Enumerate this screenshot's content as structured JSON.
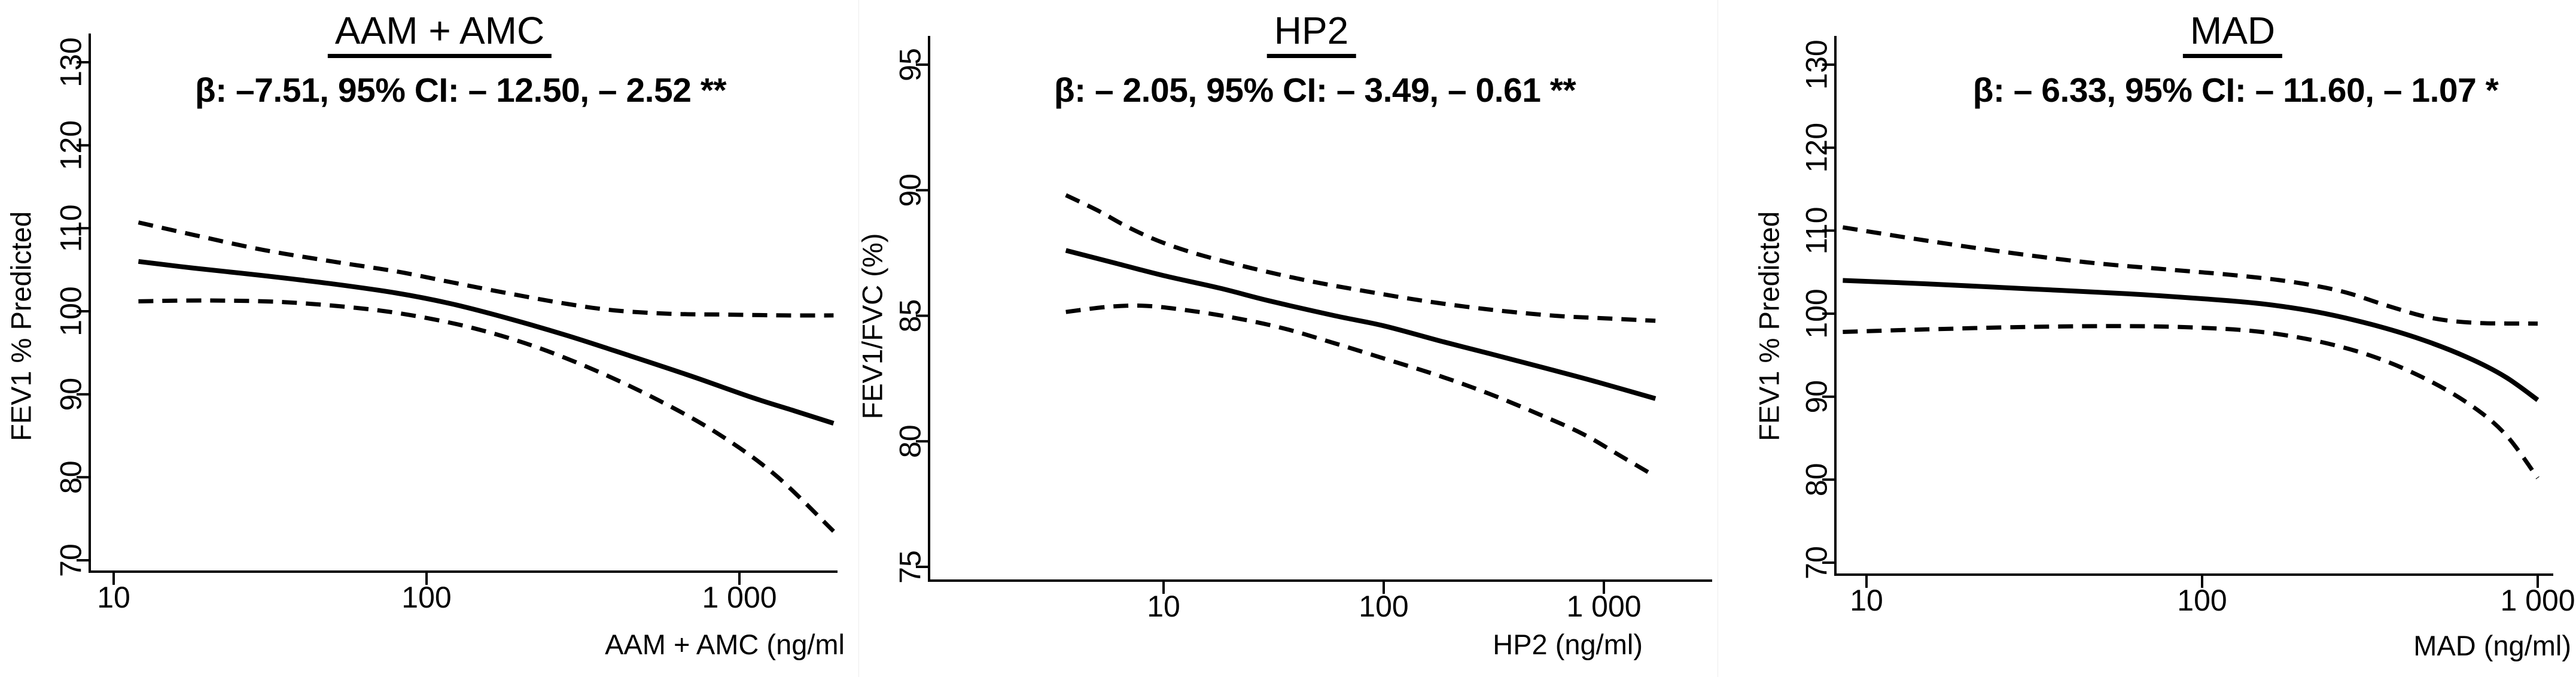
{
  "figure": {
    "background": "#ffffff",
    "ink_color": "#000000",
    "panel_divider_color": "#ececec"
  },
  "chart_data": [
    {
      "id": "aam-amc",
      "type": "line",
      "title": "AAM + AMC",
      "subtitle": "β: –7.51, 95% CI: – 12.50, – 2.52 **",
      "xlabel": "AAM + AMC (ng/ml",
      "ylabel": "FEV1 % Predicted",
      "x_scale": "log10",
      "xlim": [
        10,
        2300
      ],
      "ylim": [
        70,
        130
      ],
      "y_ticks": [
        70,
        80,
        90,
        100,
        110,
        120,
        130
      ],
      "x_ticks": [
        {
          "value": 10,
          "label": "10"
        },
        {
          "value": 100,
          "label": "100"
        },
        {
          "value": 1000,
          "label": "1 000"
        }
      ],
      "grid": false,
      "legend": null,
      "series": [
        {
          "name": "estimate",
          "style": "solid",
          "points": [
            [
              12,
              106
            ],
            [
              18,
              105.2
            ],
            [
              30,
              104.3
            ],
            [
              50,
              103.3
            ],
            [
              80,
              102.2
            ],
            [
              120,
              100.9
            ],
            [
              180,
              99.2
            ],
            [
              280,
              97.1
            ],
            [
              450,
              94.6
            ],
            [
              700,
              92.2
            ],
            [
              1100,
              89.6
            ],
            [
              1500,
              88.0
            ],
            [
              2000,
              86.5
            ]
          ]
        },
        {
          "name": "ci-upper",
          "style": "dashed",
          "points": [
            [
              12,
              110.7
            ],
            [
              18,
              109.2
            ],
            [
              30,
              107.4
            ],
            [
              50,
              106.0
            ],
            [
              80,
              104.8
            ],
            [
              120,
              103.5
            ],
            [
              180,
              102.2
            ],
            [
              280,
              100.9
            ],
            [
              400,
              100.1
            ],
            [
              600,
              99.7
            ],
            [
              900,
              99.6
            ],
            [
              1400,
              99.5
            ],
            [
              2000,
              99.5
            ]
          ]
        },
        {
          "name": "ci-lower",
          "style": "dashed",
          "points": [
            [
              12,
              101.2
            ],
            [
              20,
              101.3
            ],
            [
              35,
              101.1
            ],
            [
              60,
              100.4
            ],
            [
              90,
              99.5
            ],
            [
              140,
              98.0
            ],
            [
              220,
              95.8
            ],
            [
              350,
              92.8
            ],
            [
              550,
              89.3
            ],
            [
              850,
              85.3
            ],
            [
              1300,
              80.3
            ],
            [
              2000,
              73.5
            ]
          ]
        }
      ]
    },
    {
      "id": "hp2",
      "type": "line",
      "title": "HP2",
      "subtitle": "β: – 2.05, 95% CI: – 3.49, – 0.61 **",
      "xlabel": "HP2 (ng/ml)",
      "ylabel": "FEV1/FVC (%)",
      "x_scale": "log10",
      "xlim": [
        3.5,
        1800
      ],
      "ylim": [
        75,
        95
      ],
      "y_ticks": [
        75,
        80,
        85,
        90,
        95
      ],
      "x_ticks": [
        {
          "value": 10,
          "label": "10"
        },
        {
          "value": 100,
          "label": "100"
        },
        {
          "value": 1000,
          "label": "1 000"
        }
      ],
      "grid": false,
      "legend": null,
      "series": [
        {
          "name": "estimate",
          "style": "solid",
          "points": [
            [
              3.6,
              87.6
            ],
            [
              6,
              87.1
            ],
            [
              10,
              86.6
            ],
            [
              18,
              86.1
            ],
            [
              30,
              85.6
            ],
            [
              60,
              85.0
            ],
            [
              100,
              84.6
            ],
            [
              180,
              84.0
            ],
            [
              300,
              83.5
            ],
            [
              550,
              82.9
            ],
            [
              900,
              82.4
            ],
            [
              1715,
              81.7
            ]
          ]
        },
        {
          "name": "ci-upper",
          "style": "dashed",
          "points": [
            [
              3.6,
              89.8
            ],
            [
              5,
              89.2
            ],
            [
              7,
              88.5
            ],
            [
              10,
              87.9
            ],
            [
              15,
              87.4
            ],
            [
              25,
              86.9
            ],
            [
              45,
              86.4
            ],
            [
              80,
              86.0
            ],
            [
              150,
              85.6
            ],
            [
              300,
              85.25
            ],
            [
              600,
              85.0
            ],
            [
              1000,
              84.9
            ],
            [
              1715,
              84.8
            ]
          ]
        },
        {
          "name": "ci-lower",
          "style": "dashed",
          "points": [
            [
              3.6,
              85.15
            ],
            [
              5.5,
              85.35
            ],
            [
              8,
              85.4
            ],
            [
              12,
              85.25
            ],
            [
              20,
              84.95
            ],
            [
              35,
              84.5
            ],
            [
              60,
              83.9
            ],
            [
              100,
              83.3
            ],
            [
              180,
              82.6
            ],
            [
              300,
              81.9
            ],
            [
              500,
              81.1
            ],
            [
              800,
              80.3
            ],
            [
              1200,
              79.4
            ],
            [
              1715,
              78.6
            ]
          ]
        }
      ]
    },
    {
      "id": "mad",
      "type": "line",
      "title": "MAD",
      "subtitle": "β: – 6.33, 95% CI: – 11.60, – 1.07 *",
      "xlabel": "MAD (ng/ml)",
      "ylabel": "FEV1 % Predicted",
      "x_scale": "log10",
      "xlim": [
        8,
        1100
      ],
      "ylim": [
        70,
        130
      ],
      "y_ticks": [
        70,
        80,
        90,
        100,
        110,
        120,
        130
      ],
      "x_ticks": [
        {
          "value": 10,
          "label": "10"
        },
        {
          "value": 100,
          "label": "100"
        },
        {
          "value": 1000,
          "label": "1 000"
        }
      ],
      "grid": false,
      "legend": null,
      "series": [
        {
          "name": "estimate",
          "style": "solid",
          "points": [
            [
              8.5,
              104.0
            ],
            [
              15,
              103.6
            ],
            [
              30,
              103.0
            ],
            [
              60,
              102.4
            ],
            [
              100,
              101.8
            ],
            [
              150,
              101.2
            ],
            [
              220,
              100.2
            ],
            [
              320,
              98.7
            ],
            [
              450,
              96.9
            ],
            [
              620,
              94.7
            ],
            [
              800,
              92.4
            ],
            [
              1000,
              89.6
            ]
          ]
        },
        {
          "name": "ci-upper",
          "style": "dashed",
          "points": [
            [
              8.5,
              110.4
            ],
            [
              14,
              109.0
            ],
            [
              25,
              107.5
            ],
            [
              45,
              106.2
            ],
            [
              75,
              105.4
            ],
            [
              120,
              104.7
            ],
            [
              180,
              103.9
            ],
            [
              260,
              102.7
            ],
            [
              360,
              100.9
            ],
            [
              480,
              99.5
            ],
            [
              650,
              98.9
            ],
            [
              1000,
              98.8
            ]
          ]
        },
        {
          "name": "ci-lower",
          "style": "dashed",
          "points": [
            [
              8.5,
              97.8
            ],
            [
              15,
              98.1
            ],
            [
              30,
              98.4
            ],
            [
              60,
              98.5
            ],
            [
              100,
              98.3
            ],
            [
              150,
              97.8
            ],
            [
              220,
              96.7
            ],
            [
              320,
              94.9
            ],
            [
              450,
              92.4
            ],
            [
              620,
              89.2
            ],
            [
              800,
              85.5
            ],
            [
              1000,
              80.2
            ]
          ]
        }
      ]
    }
  ]
}
